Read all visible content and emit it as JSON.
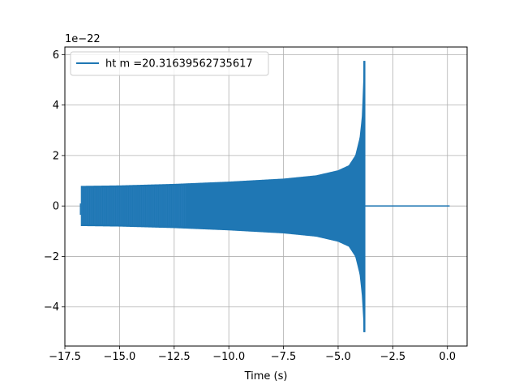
{
  "chart_data": {
    "type": "line",
    "title": "",
    "xlabel": "Time (s)",
    "ylabel": "",
    "y_offset_label": "1e−22",
    "xlim": [
      -17.5,
      0.9
    ],
    "ylim": [
      -5.55,
      6.3
    ],
    "x_ticks": [
      -17.5,
      -15.0,
      -12.5,
      -10.0,
      -7.5,
      -5.0,
      -2.5,
      0.0
    ],
    "x_tick_labels": [
      "−17.5",
      "−15.0",
      "−12.5",
      "−10.0",
      "−7.5",
      "−5.0",
      "−2.5",
      "0.0"
    ],
    "y_ticks": [
      -4,
      -2,
      0,
      2,
      4,
      6
    ],
    "y_tick_labels": [
      "−4",
      "−2",
      "0",
      "2",
      "4",
      "6"
    ],
    "grid": true,
    "legend_position": "top-left",
    "series": [
      {
        "name": "ht m =20.31639562735617",
        "color": "#1f77b4",
        "description": "chirp signal",
        "t_start": -16.75,
        "t_merger": -3.8,
        "t_end": 0.1,
        "upper_envelope": [
          [
            -16.75,
            0.78
          ],
          [
            -15.0,
            0.8
          ],
          [
            -12.5,
            0.86
          ],
          [
            -10.0,
            0.95
          ],
          [
            -7.5,
            1.07
          ],
          [
            -6.0,
            1.2
          ],
          [
            -5.0,
            1.4
          ],
          [
            -4.5,
            1.6
          ],
          [
            -4.2,
            2.0
          ],
          [
            -4.0,
            2.7
          ],
          [
            -3.9,
            3.5
          ],
          [
            -3.85,
            4.5
          ],
          [
            -3.8,
            5.75
          ]
        ],
        "lower_envelope": [
          [
            -16.75,
            -0.78
          ],
          [
            -15.0,
            -0.8
          ],
          [
            -12.5,
            -0.86
          ],
          [
            -10.0,
            -0.95
          ],
          [
            -7.5,
            -1.07
          ],
          [
            -6.0,
            -1.2
          ],
          [
            -5.0,
            -1.4
          ],
          [
            -4.5,
            -1.6
          ],
          [
            -4.2,
            -2.0
          ],
          [
            -4.0,
            -2.7
          ],
          [
            -3.9,
            -3.5
          ],
          [
            -3.85,
            -4.2
          ],
          [
            -3.8,
            -5.0
          ]
        ],
        "post_merger_value": 0.0
      }
    ]
  }
}
